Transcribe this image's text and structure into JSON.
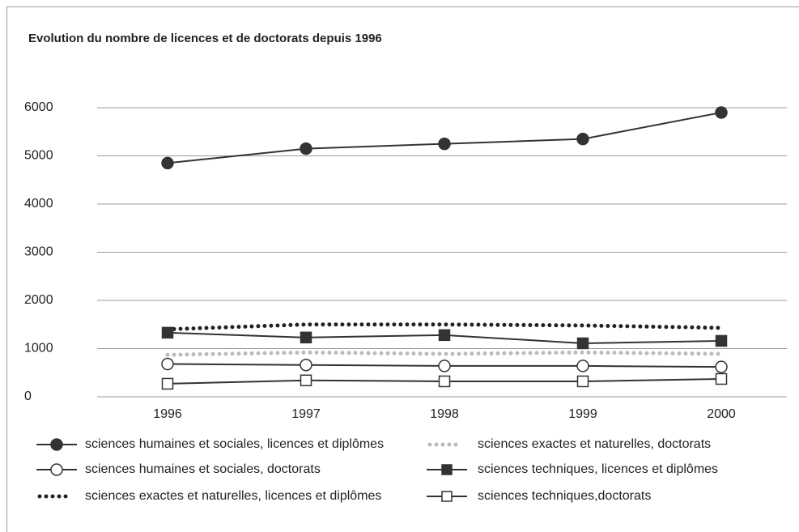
{
  "chart_data": {
    "type": "line",
    "title": "Evolution du nombre de licences et de doctorats depuis 1996",
    "categories": [
      "1996",
      "1997",
      "1998",
      "1999",
      "2000"
    ],
    "ylim": [
      0,
      6000
    ],
    "yticks": [
      0,
      1000,
      2000,
      3000,
      4000,
      5000,
      6000
    ],
    "grid": true,
    "legend": "bottom",
    "series": [
      {
        "name": "sciences humaines et sociales, licences et diplômes",
        "color": "#333333",
        "style": "solid",
        "marker": "circle-filled",
        "values": [
          4850,
          5150,
          5250,
          5350,
          5900
        ]
      },
      {
        "name": "sciences humaines et sociales, doctorats",
        "color": "#333333",
        "style": "solid",
        "marker": "circle-open",
        "values": [
          680,
          660,
          640,
          640,
          620
        ]
      },
      {
        "name": "sciences exactes et naturelles, licences et diplômes",
        "color": "#222222",
        "style": "dotted",
        "marker": "none",
        "values": [
          1400,
          1500,
          1500,
          1480,
          1430
        ]
      },
      {
        "name": "sciences exactes et naturelles, doctorats",
        "color": "#bbbbbb",
        "style": "dotted",
        "marker": "none",
        "values": [
          870,
          920,
          890,
          920,
          890
        ]
      },
      {
        "name": "sciences techniques,  licences et diplômes",
        "color": "#333333",
        "style": "solid",
        "marker": "square-filled",
        "values": [
          1330,
          1230,
          1280,
          1110,
          1160
        ]
      },
      {
        "name": "sciences techniques,doctorats",
        "color": "#333333",
        "style": "solid",
        "marker": "square-open",
        "values": [
          270,
          340,
          320,
          320,
          370
        ]
      }
    ]
  }
}
